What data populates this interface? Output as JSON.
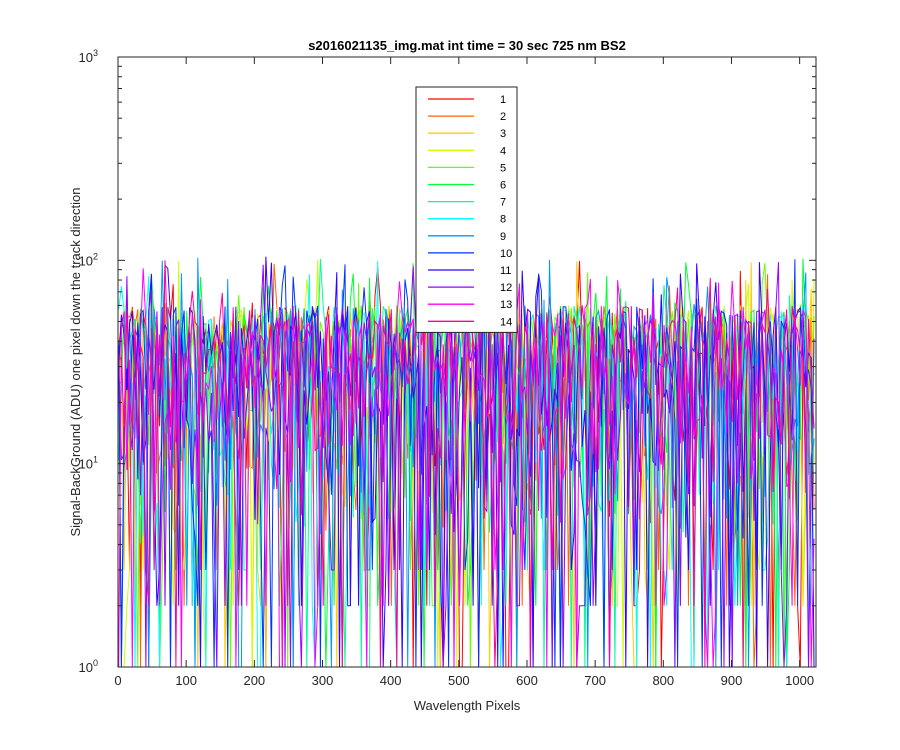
{
  "chart_data": {
    "type": "line",
    "title": "s2016021135_img.mat int time = 30 sec  725 nm BS2",
    "xlabel": "Wavelength Pixels",
    "ylabel": "Signal-BackGround (ADU) one pixel down the track direction",
    "xlim": [
      0,
      1024
    ],
    "ylim": [
      1,
      1000
    ],
    "yscale": "log",
    "x_ticks": [
      "0",
      "100",
      "200",
      "300",
      "400",
      "500",
      "600",
      "700",
      "800",
      "900",
      "1000"
    ],
    "y_ticks": [
      {
        "base": "10",
        "exp": "0"
      },
      {
        "base": "10",
        "exp": "1"
      },
      {
        "base": "10",
        "exp": "2"
      },
      {
        "base": "10",
        "exp": "3"
      }
    ],
    "grid": false,
    "legend_position": "top-center",
    "x_range": [
      1,
      1024
    ],
    "typical_range": [
      2,
      110
    ],
    "series": [
      {
        "name": "1",
        "color": "#ff0000"
      },
      {
        "name": "2",
        "color": "#ff6600"
      },
      {
        "name": "3",
        "color": "#ffcc00"
      },
      {
        "name": "4",
        "color": "#ccff00"
      },
      {
        "name": "5",
        "color": "#66ff00"
      },
      {
        "name": "6",
        "color": "#00ff33"
      },
      {
        "name": "7",
        "color": "#00ff99"
      },
      {
        "name": "8",
        "color": "#00ffff"
      },
      {
        "name": "9",
        "color": "#0099ff"
      },
      {
        "name": "10",
        "color": "#0033ff"
      },
      {
        "name": "11",
        "color": "#3300ff"
      },
      {
        "name": "12",
        "color": "#9900ff"
      },
      {
        "name": "13",
        "color": "#ff00ff"
      },
      {
        "name": "14",
        "color": "#ff0099"
      }
    ]
  }
}
